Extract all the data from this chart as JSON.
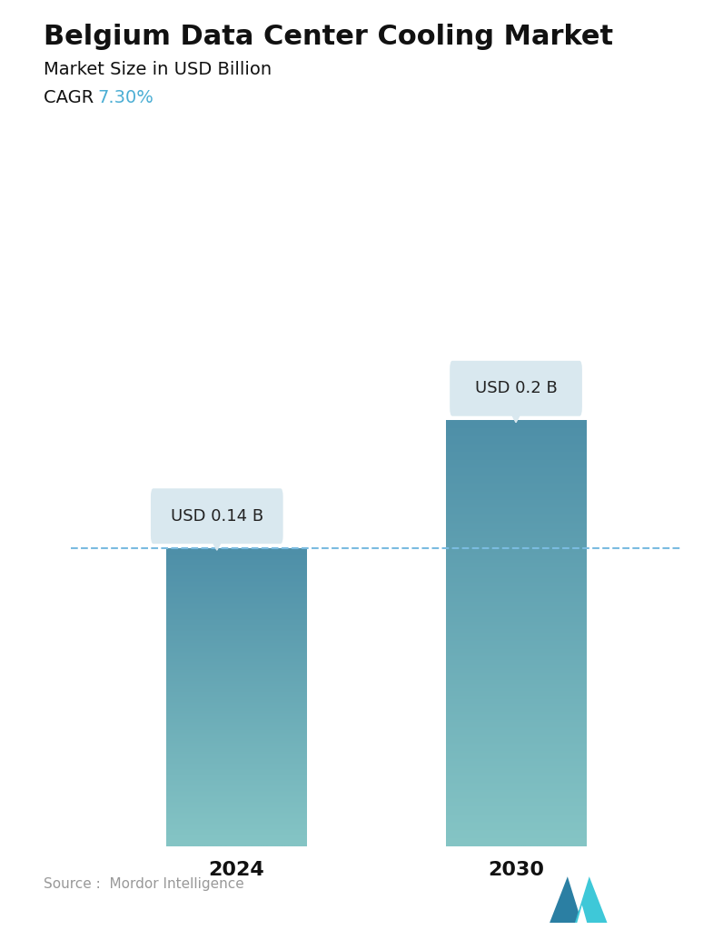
{
  "title": "Belgium Data Center Cooling Market",
  "subtitle": "Market Size in USD Billion",
  "cagr_label": "CAGR ",
  "cagr_value": "7.30%",
  "cagr_color": "#4BAED4",
  "categories": [
    "2024",
    "2030"
  ],
  "values": [
    0.14,
    0.2
  ],
  "bar_labels": [
    "USD 0.14 B",
    "USD 0.2 B"
  ],
  "bar_color_top": "#4E8FA8",
  "bar_color_bottom": "#85C5C5",
  "dashed_line_color": "#7ABBE0",
  "dashed_line_y": 0.14,
  "annotation_box_color": "#D9E8EF",
  "source_text": "Source :  Mordor Intelligence",
  "background_color": "#FFFFFF",
  "ylim": [
    0,
    0.265
  ],
  "bar_width": 0.22,
  "title_fontsize": 22,
  "subtitle_fontsize": 14,
  "cagr_fontsize": 14,
  "tick_fontsize": 16,
  "label_fontsize": 13
}
